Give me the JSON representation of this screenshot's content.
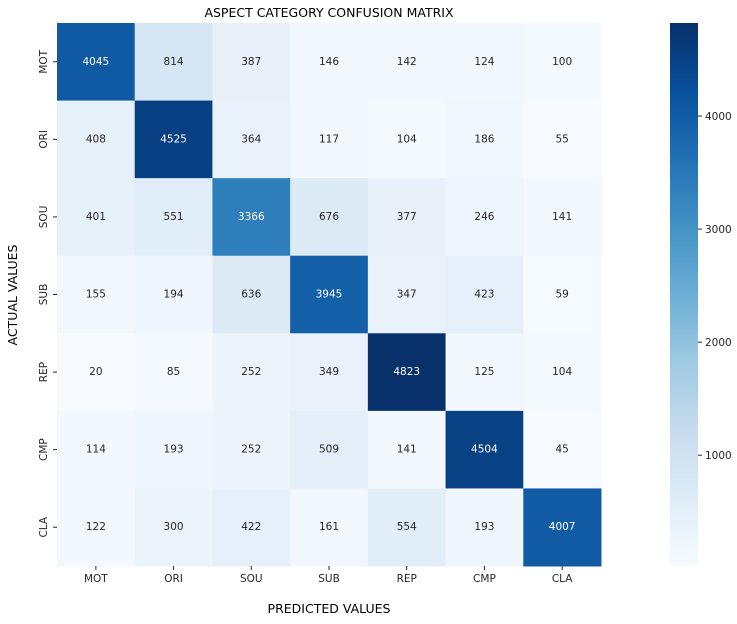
{
  "chart_data": {
    "type": "heatmap",
    "title": "ASPECT CATEGORY CONFUSION MATRIX",
    "xlabel": "PREDICTED VALUES",
    "ylabel": "ACTUAL VALUES",
    "x_categories": [
      "MOT",
      "ORI",
      "SOU",
      "SUB",
      "REP",
      "CMP",
      "CLA"
    ],
    "y_categories": [
      "MOT",
      "ORI",
      "SOU",
      "SUB",
      "REP",
      "CMP",
      "CLA"
    ],
    "values": [
      [
        4045,
        814,
        387,
        146,
        142,
        124,
        100
      ],
      [
        408,
        4525,
        364,
        117,
        104,
        186,
        55
      ],
      [
        401,
        551,
        3366,
        676,
        377,
        246,
        141
      ],
      [
        155,
        194,
        636,
        3945,
        347,
        423,
        59
      ],
      [
        20,
        85,
        252,
        349,
        4823,
        125,
        104
      ],
      [
        114,
        193,
        252,
        509,
        141,
        4504,
        45
      ],
      [
        122,
        300,
        422,
        161,
        554,
        193,
        4007
      ]
    ],
    "colorbar": {
      "colormap": "Blues",
      "vmin": 20,
      "vmax": 4823,
      "ticks": [
        1000,
        2000,
        3000,
        4000
      ]
    },
    "grid": false,
    "annotations": true
  }
}
